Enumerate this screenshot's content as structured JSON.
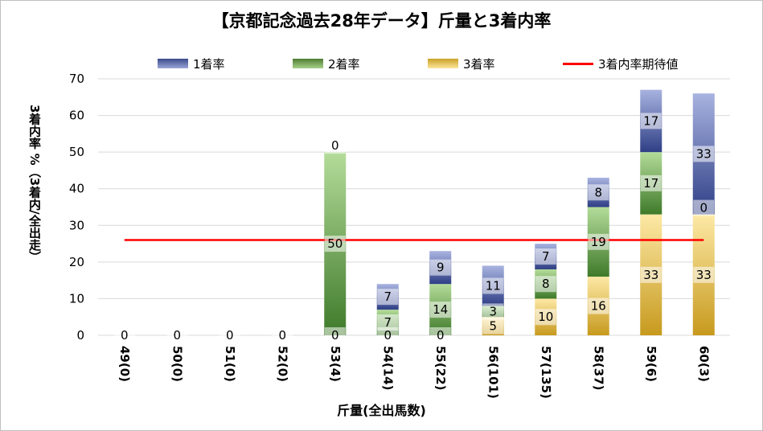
{
  "chart_data": {
    "type": "bar",
    "stacked": true,
    "title": "【京都記念過去28年データ】斤量と3着内率",
    "xlabel": "斤量(全出馬数)",
    "ylabel": "3着内率 %（3着内/全出走）",
    "ylim": [
      0,
      70
    ],
    "yticks": [
      0,
      10,
      20,
      30,
      40,
      50,
      60,
      70
    ],
    "grid": true,
    "legend_position": "top",
    "categories": [
      "49(0)",
      "50(0)",
      "51(0)",
      "52(0)",
      "53(4)",
      "54(14)",
      "55(22)",
      "56(101)",
      "57(135)",
      "58(37)",
      "59(6)",
      "60(3)"
    ],
    "series": [
      {
        "name": "3着率",
        "color": "#c9a227",
        "values": [
          0,
          0,
          0,
          0,
          0,
          0,
          0,
          5,
          10,
          16,
          33,
          33
        ]
      },
      {
        "name": "2着率",
        "color": "#5b8a3a",
        "values": [
          0,
          0,
          0,
          0,
          50,
          7,
          14,
          3,
          8,
          19,
          17,
          0
        ]
      },
      {
        "name": "1着率",
        "color": "#3a4a8c",
        "values": [
          0,
          0,
          0,
          0,
          0,
          7,
          9,
          11,
          7,
          8,
          17,
          33
        ]
      }
    ],
    "reference_line": {
      "name": "3着内率期待値",
      "value": 26,
      "color": "#ff0000"
    }
  }
}
